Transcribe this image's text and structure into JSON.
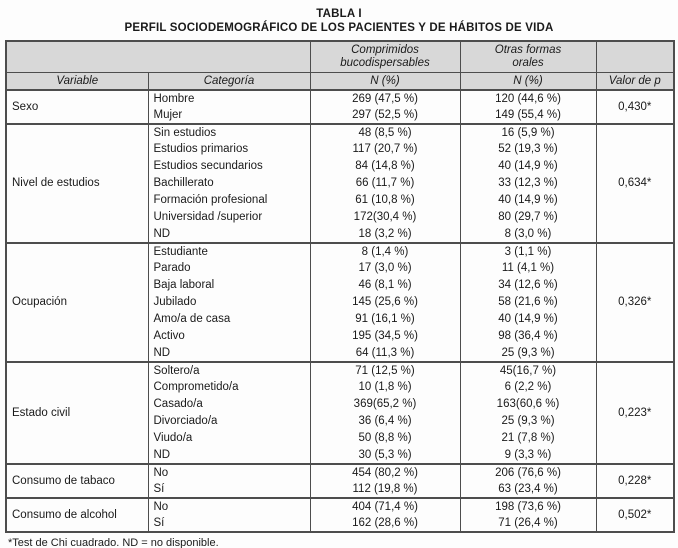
{
  "page": {
    "title": "TABLA I",
    "subtitle": "PERFIL SOCIODEMOGRÁFICO DE LOS PACIENTES Y DE HÁBITOS DE VIDA",
    "footnote": "*Test de Chi cuadrado. ND = no disponible."
  },
  "colors": {
    "header_bg": "#d8d8d8",
    "border": "#4d4d4d"
  },
  "chart_data": {
    "type": "table",
    "title": "TABLA I. PERFIL SOCIODEMOGRÁFICO DE LOS PACIENTES Y DE HÁBITOS DE VIDA",
    "column_groups": [
      "Comprimidos bucodispersables",
      "Otras formas orales"
    ],
    "columns": [
      "Variable",
      "Categoría",
      "N (%)",
      "N (%)",
      "Valor de p"
    ],
    "groups": [
      {
        "variable": "Sexo",
        "p": "0,430*",
        "rows": [
          {
            "categoria": "Hombre",
            "comprimidos": "269 (47,5 %)",
            "otras": "120 (44,6 %)"
          },
          {
            "categoria": "Mujer",
            "comprimidos": "297 (52,5 %)",
            "otras": "149 (55,4 %)"
          }
        ]
      },
      {
        "variable": "Nivel de estudios",
        "p": "0,634*",
        "rows": [
          {
            "categoria": "Sin estudios",
            "comprimidos": "48 (8,5 %)",
            "otras": "16 (5,9 %)"
          },
          {
            "categoria": "Estudios primarios",
            "comprimidos": "117 (20,7 %)",
            "otras": "52 (19,3 %)"
          },
          {
            "categoria": "Estudios secundarios",
            "comprimidos": "84 (14,8 %)",
            "otras": "40 (14,9 %)"
          },
          {
            "categoria": "Bachillerato",
            "comprimidos": "66 (11,7 %)",
            "otras": "33 (12,3 %)"
          },
          {
            "categoria": "Formación profesional",
            "comprimidos": "61 (10,8 %)",
            "otras": "40 (14,9 %)"
          },
          {
            "categoria": "Universidad /superior",
            "comprimidos": "172(30,4 %)",
            "otras": "80 (29,7 %)"
          },
          {
            "categoria": "ND",
            "comprimidos": "18 (3,2 %)",
            "otras": "8 (3,0 %)"
          }
        ]
      },
      {
        "variable": "Ocupación",
        "p": "0,326*",
        "rows": [
          {
            "categoria": "Estudiante",
            "comprimidos": "8 (1,4 %)",
            "otras": "3 (1,1 %)"
          },
          {
            "categoria": "Parado",
            "comprimidos": "17 (3,0 %)",
            "otras": "11 (4,1 %)"
          },
          {
            "categoria": "Baja laboral",
            "comprimidos": "46 (8,1 %)",
            "otras": "34 (12,6 %)"
          },
          {
            "categoria": "Jubilado",
            "comprimidos": "145 (25,6 %)",
            "otras": "58 (21,6 %)"
          },
          {
            "categoria": "Amo/a de casa",
            "comprimidos": "91 (16,1 %)",
            "otras": "40 (14,9 %)"
          },
          {
            "categoria": "Activo",
            "comprimidos": "195 (34,5 %)",
            "otras": "98 (36,4 %)"
          },
          {
            "categoria": "ND",
            "comprimidos": "64 (11,3 %)",
            "otras": "25 (9,3 %)"
          }
        ]
      },
      {
        "variable": "Estado civil",
        "p": "0,223*",
        "rows": [
          {
            "categoria": "Soltero/a",
            "comprimidos": "71 (12,5 %)",
            "otras": "45(16,7 %)"
          },
          {
            "categoria": "Comprometido/a",
            "comprimidos": "10 (1,8 %)",
            "otras": "6 (2,2 %)"
          },
          {
            "categoria": "Casado/a",
            "comprimidos": "369(65,2 %)",
            "otras": "163(60,6 %)"
          },
          {
            "categoria": "Divorciado/a",
            "comprimidos": "36 (6,4 %)",
            "otras": "25 (9,3 %)"
          },
          {
            "categoria": "Viudo/a",
            "comprimidos": "50 (8,8 %)",
            "otras": "21 (7,8 %)"
          },
          {
            "categoria": "ND",
            "comprimidos": "30 (5,3 %)",
            "otras": "9 (3,3 %)"
          }
        ]
      },
      {
        "variable": "Consumo de tabaco",
        "p": "0,228*",
        "rows": [
          {
            "categoria": "No",
            "comprimidos": "454 (80,2 %)",
            "otras": "206 (76,6 %)"
          },
          {
            "categoria": "Sí",
            "comprimidos": "112 (19,8 %)",
            "otras": "63 (23,4 %)"
          }
        ]
      },
      {
        "variable": "Consumo de alcohol",
        "p": "0,502*",
        "rows": [
          {
            "categoria": "No",
            "comprimidos": "404 (71,4 %)",
            "otras": "198 (73,6 %)"
          },
          {
            "categoria": "Sí",
            "comprimidos": "162 (28,6 %)",
            "otras": "71 (26,4 %)"
          }
        ]
      }
    ]
  }
}
